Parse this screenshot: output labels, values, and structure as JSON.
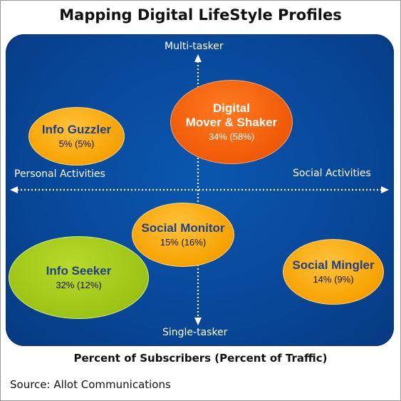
{
  "title": "Mapping Digital LifeStyle Profiles",
  "axes": {
    "top": "Multi-tasker",
    "bottom": "Single-tasker",
    "left": "Personal Activities",
    "right": "Social Activities"
  },
  "profiles": [
    {
      "name_line1": "Digital",
      "name_line2": "Mover & Shaker",
      "pct": "34% (58%)",
      "color": "#f05a06"
    },
    {
      "name_line1": "Info Guzzler",
      "name_line2": "",
      "pct": "5% (5%)",
      "color": "#f7a200"
    },
    {
      "name_line1": "Social Monitor",
      "name_line2": "",
      "pct": "15% (16%)",
      "color": "#f7a200"
    },
    {
      "name_line1": "Info Seeker",
      "name_line2": "",
      "pct": "32% (12%)",
      "color": "#9cc414"
    },
    {
      "name_line1": "Social Mingler",
      "name_line2": "",
      "pct": "14% (9%)",
      "color": "#f7a200"
    }
  ],
  "caption": "Percent of Subscribers (Percent of Traffic)",
  "source": "Source: Allot Communications",
  "colors": {
    "panel": "#08489a",
    "axis": "#ffffff",
    "name_text": "#1d3f8a"
  }
}
